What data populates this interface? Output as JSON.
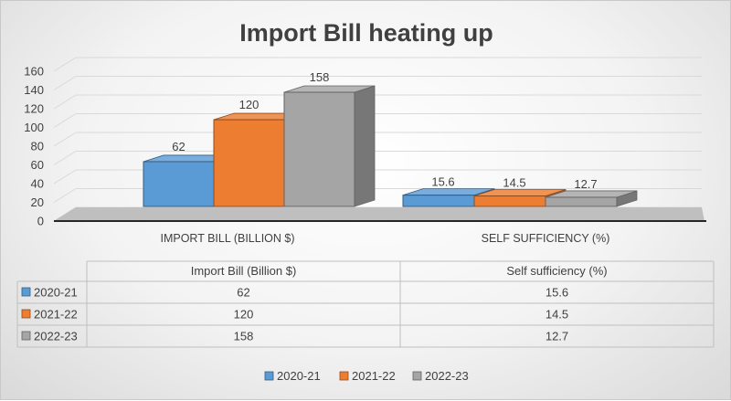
{
  "chart_data": {
    "type": "bar",
    "title": "Import Bill heating up",
    "categories": [
      "IMPORT BILL (BILLION $)",
      "SELF SUFFICIENCY (%)"
    ],
    "series": [
      {
        "name": "2020-21",
        "values": [
          62,
          15.6
        ],
        "color": "#5b9bd5"
      },
      {
        "name": "2021-22",
        "values": [
          120,
          14.5
        ],
        "color": "#ed7d31"
      },
      {
        "name": "2022-23",
        "values": [
          158,
          12.7
        ],
        "color": "#a5a5a5"
      }
    ],
    "data_labels": [
      [
        "62",
        "15.6"
      ],
      [
        "120",
        "14.5"
      ],
      [
        "158",
        "12.7"
      ]
    ],
    "y_ticks": [
      "0",
      "20",
      "40",
      "60",
      "80",
      "100",
      "120",
      "140",
      "160"
    ],
    "ylim": [
      0,
      160
    ],
    "grid": true,
    "three_d": true,
    "table": {
      "headers": [
        "Import Bill (Billion $)",
        "Self sufficiency (%)"
      ],
      "rows": [
        {
          "label": "2020-21",
          "cells": [
            "62",
            "15.6"
          ]
        },
        {
          "label": "2021-22",
          "cells": [
            "120",
            "14.5"
          ]
        },
        {
          "label": "2022-23",
          "cells": [
            "158",
            "12.7"
          ]
        }
      ]
    },
    "legend_position": "bottom"
  }
}
